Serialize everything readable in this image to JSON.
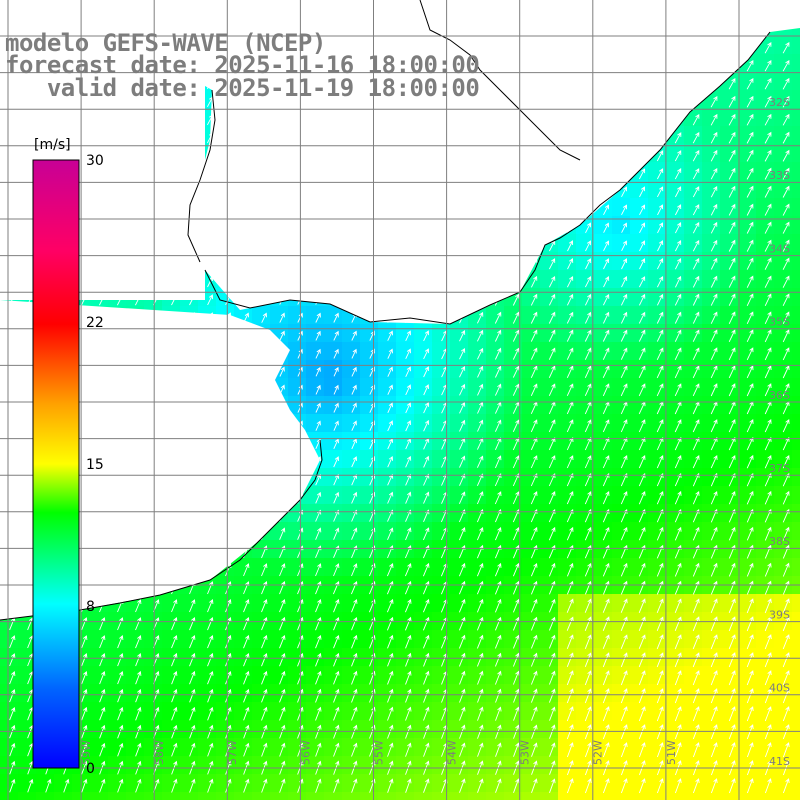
{
  "title": {
    "line1": "modelo GEFS-WAVE (NCEP)",
    "line2": "forecast date: 2025-11-16 18:00:00",
    "line3": "   valid date: 2025-11-19 18:00:00"
  },
  "colorbar": {
    "unit": "[m/s]",
    "ticks": [
      {
        "value": 30,
        "label": "30"
      },
      {
        "value": 22,
        "label": "22"
      },
      {
        "value": 15,
        "label": "15"
      },
      {
        "value": 8,
        "label": "8"
      },
      {
        "value": 0,
        "label": "0"
      }
    ]
  },
  "map": {
    "lat_labels": [
      "32S",
      "33S",
      "34S",
      "35S",
      "36S",
      "37S",
      "38S",
      "39S",
      "40S",
      "41S"
    ],
    "lon_labels": [
      "59W",
      "58W",
      "57W",
      "56W",
      "55W",
      "54W",
      "53W",
      "52W",
      "51W"
    ],
    "field": "wind speed",
    "field_range": [
      0,
      30
    ],
    "colors": {
      "land": "#ffffff",
      "grid": "#7f7f7f",
      "coast": "#000000",
      "arrows": "#ffffff",
      "label": "#7d7d7d"
    }
  }
}
